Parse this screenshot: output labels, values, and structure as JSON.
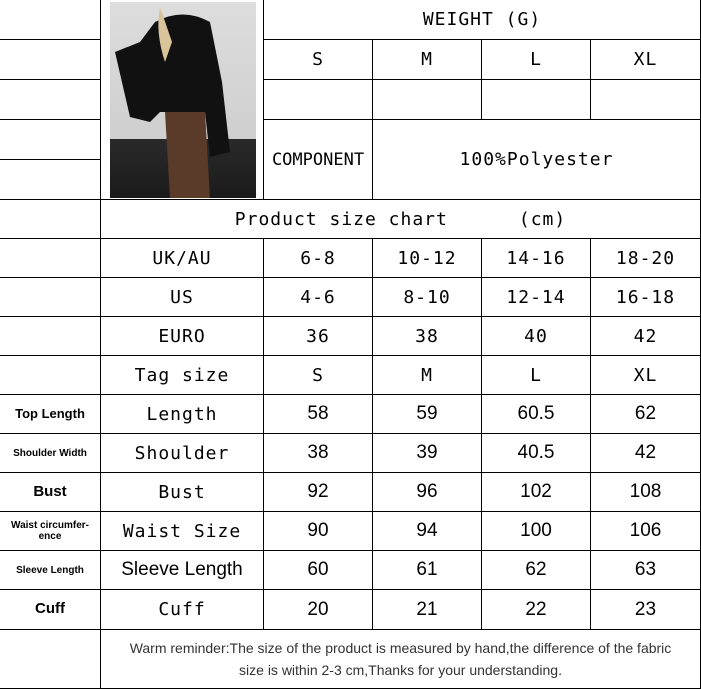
{
  "weight": {
    "title": "WEIGHT (G)",
    "sizes": [
      "S",
      "M",
      "L",
      "XL"
    ]
  },
  "component": {
    "label": "COMPONENT",
    "value": "100%Polyester"
  },
  "chart": {
    "title": "Product size chart      (cm)"
  },
  "rows": [
    {
      "label": "UK/AU",
      "values": [
        "6-8",
        "10-12",
        "14-16",
        "18-20"
      ]
    },
    {
      "label": "US",
      "values": [
        "4-6",
        "8-10",
        "12-14",
        "16-18"
      ]
    },
    {
      "label": "EURO",
      "values": [
        "36",
        "38",
        "40",
        "42"
      ]
    },
    {
      "label": "Tag size",
      "values": [
        "S",
        "M",
        "L",
        "XL"
      ]
    },
    {
      "side": "Top Length",
      "label": "Length",
      "values": [
        "58",
        "59",
        "60.5",
        "62"
      ]
    },
    {
      "side": "Shoulder Width",
      "label": "Shoulder",
      "values": [
        "38",
        "39",
        "40.5",
        "42"
      ]
    },
    {
      "side": "Bust",
      "label": "Bust",
      "values": [
        "92",
        "96",
        "102",
        "108"
      ]
    },
    {
      "side": "Waist circumfer-ence",
      "label": "Waist Size",
      "values": [
        "90",
        "94",
        "100",
        "106"
      ]
    },
    {
      "side": "Sleeve Length",
      "label": "Sleeve Length",
      "values": [
        "60",
        "61",
        "62",
        "63"
      ]
    },
    {
      "side": "Cuff",
      "label": "Cuff",
      "values": [
        "20",
        "21",
        "22",
        "23"
      ]
    }
  ],
  "reminder": "Warm reminder:The size of the product is measured by hand,the difference of the fabric size is within 2-3 cm,Thanks for your understanding."
}
